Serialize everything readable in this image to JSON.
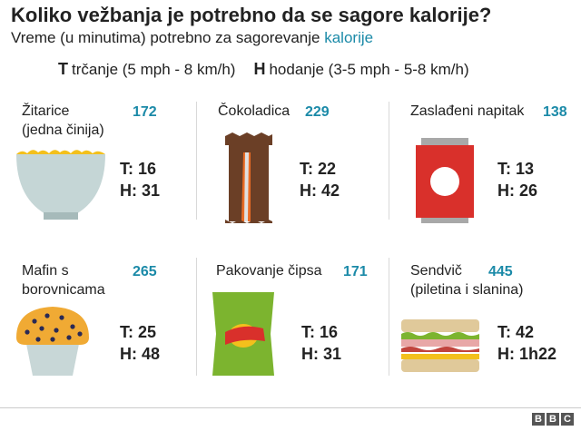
{
  "title": "Koliko vežbanja je potrebno da se sagore kalorije?",
  "subtitle": {
    "text": "Vreme (u minutima) potrebno za sagorevanje ",
    "accent": "kalorije"
  },
  "legend": {
    "run_key": "T",
    "run_label": "trčanje (5 mph - 8 km/h)",
    "walk_key": "H",
    "walk_label": "hodanje (3-5 mph - 5-8 km/h)"
  },
  "accent_color": "#1b8aa8",
  "items": [
    {
      "name_line1": "Žitarice",
      "name_line2": "(jedna činija)",
      "calories": "172",
      "run": "T: 16",
      "walk": "H: 31",
      "icon": "cereal-bowl-icon"
    },
    {
      "name_line1": "Čokoladica",
      "name_line2": "",
      "calories": "229",
      "run": "T: 22",
      "walk": "H: 42",
      "icon": "chocolate-bar-icon"
    },
    {
      "name_line1": "Zaslađeni napitak",
      "name_line2": "",
      "calories": "138",
      "run": "T: 13",
      "walk": "H: 26",
      "icon": "soda-can-icon"
    },
    {
      "name_line1": "Mafin s",
      "name_line2": "borovnicama",
      "calories": "265",
      "run": "T: 25",
      "walk": "H: 48",
      "icon": "muffin-icon"
    },
    {
      "name_line1": "Pakovanje čipsa",
      "name_line2": "",
      "calories": "171",
      "run": "T: 16",
      "walk": "H: 31",
      "icon": "chips-bag-icon"
    },
    {
      "name_line1": "Sendvič",
      "name_line2": "(piletina i slanina)",
      "calories": "445",
      "run": "T: 42",
      "walk": "H: 1h22",
      "icon": "sandwich-icon"
    }
  ],
  "footer": {
    "b1": "B",
    "b2": "B",
    "b3": "C"
  }
}
